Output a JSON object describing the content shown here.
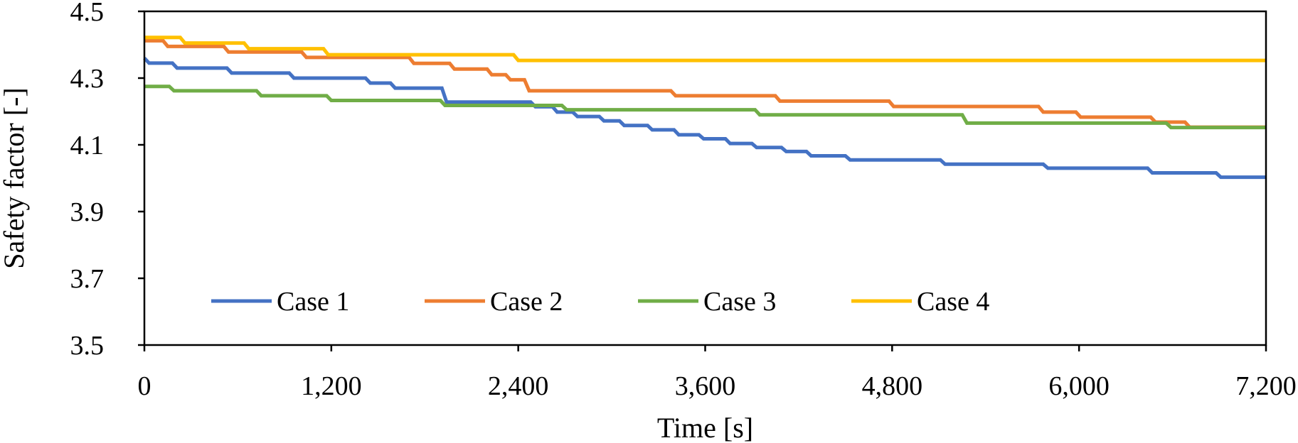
{
  "chart_data": {
    "type": "line",
    "title": "",
    "xlabel": "Time [s]",
    "ylabel": "Safety factor [-]",
    "xlim": [
      0,
      7200
    ],
    "ylim": [
      3.5,
      4.5
    ],
    "x_ticks": [
      0,
      1200,
      2400,
      3600,
      4800,
      6000,
      7200
    ],
    "x_tick_labels": [
      "0",
      "1,200",
      "2,400",
      "3,600",
      "4,800",
      "6,000",
      "7,200"
    ],
    "y_ticks": [
      3.5,
      3.7,
      3.9,
      4.1,
      4.3,
      4.5
    ],
    "y_tick_labels": [
      "3.5",
      "3.7",
      "3.9",
      "4.1",
      "4.3",
      "4.5"
    ],
    "grid": false,
    "legend_position": "bottom-left",
    "series": [
      {
        "name": "Case 1",
        "color": "#4472C4",
        "points": [
          [
            0,
            4.36
          ],
          [
            30,
            4.345
          ],
          [
            180,
            4.345
          ],
          [
            210,
            4.33
          ],
          [
            530,
            4.33
          ],
          [
            560,
            4.315
          ],
          [
            930,
            4.315
          ],
          [
            960,
            4.3
          ],
          [
            1420,
            4.3
          ],
          [
            1450,
            4.285
          ],
          [
            1580,
            4.285
          ],
          [
            1610,
            4.27
          ],
          [
            1910,
            4.27
          ],
          [
            1940,
            4.228
          ],
          [
            2480,
            4.228
          ],
          [
            2510,
            4.214
          ],
          [
            2620,
            4.214
          ],
          [
            2650,
            4.198
          ],
          [
            2750,
            4.198
          ],
          [
            2780,
            4.185
          ],
          [
            2920,
            4.185
          ],
          [
            2950,
            4.172
          ],
          [
            3050,
            4.172
          ],
          [
            3080,
            4.158
          ],
          [
            3230,
            4.158
          ],
          [
            3260,
            4.145
          ],
          [
            3400,
            4.145
          ],
          [
            3430,
            4.13
          ],
          [
            3560,
            4.13
          ],
          [
            3590,
            4.118
          ],
          [
            3730,
            4.118
          ],
          [
            3760,
            4.104
          ],
          [
            3900,
            4.104
          ],
          [
            3930,
            4.092
          ],
          [
            4090,
            4.092
          ],
          [
            4120,
            4.08
          ],
          [
            4250,
            4.08
          ],
          [
            4280,
            4.067
          ],
          [
            4500,
            4.067
          ],
          [
            4530,
            4.055
          ],
          [
            5110,
            4.055
          ],
          [
            5140,
            4.042
          ],
          [
            5770,
            4.042
          ],
          [
            5800,
            4.03
          ],
          [
            6440,
            4.03
          ],
          [
            6470,
            4.016
          ],
          [
            6880,
            4.016
          ],
          [
            6910,
            4.003
          ],
          [
            7200,
            4.003
          ]
        ]
      },
      {
        "name": "Case 2",
        "color": "#ED7D31",
        "points": [
          [
            0,
            4.412
          ],
          [
            120,
            4.412
          ],
          [
            150,
            4.395
          ],
          [
            510,
            4.395
          ],
          [
            540,
            4.378
          ],
          [
            1010,
            4.378
          ],
          [
            1040,
            4.362
          ],
          [
            1700,
            4.362
          ],
          [
            1730,
            4.344
          ],
          [
            1960,
            4.344
          ],
          [
            1990,
            4.327
          ],
          [
            2200,
            4.327
          ],
          [
            2230,
            4.31
          ],
          [
            2320,
            4.31
          ],
          [
            2350,
            4.295
          ],
          [
            2440,
            4.295
          ],
          [
            2470,
            4.262
          ],
          [
            3380,
            4.262
          ],
          [
            3410,
            4.247
          ],
          [
            4050,
            4.247
          ],
          [
            4080,
            4.231
          ],
          [
            4780,
            4.231
          ],
          [
            4810,
            4.215
          ],
          [
            5740,
            4.215
          ],
          [
            5770,
            4.198
          ],
          [
            5980,
            4.198
          ],
          [
            6010,
            4.183
          ],
          [
            6460,
            4.183
          ],
          [
            6490,
            4.168
          ],
          [
            6680,
            4.168
          ],
          [
            6710,
            4.153
          ],
          [
            7200,
            4.153
          ]
        ]
      },
      {
        "name": "Case 3",
        "color": "#70AD47",
        "points": [
          [
            0,
            4.275
          ],
          [
            160,
            4.275
          ],
          [
            190,
            4.262
          ],
          [
            720,
            4.262
          ],
          [
            750,
            4.247
          ],
          [
            1170,
            4.247
          ],
          [
            1200,
            4.233
          ],
          [
            1900,
            4.233
          ],
          [
            1930,
            4.218
          ],
          [
            2680,
            4.218
          ],
          [
            2710,
            4.205
          ],
          [
            3920,
            4.205
          ],
          [
            3950,
            4.19
          ],
          [
            5250,
            4.19
          ],
          [
            5280,
            4.165
          ],
          [
            6560,
            4.165
          ],
          [
            6590,
            4.152
          ],
          [
            7200,
            4.152
          ]
        ]
      },
      {
        "name": "Case 4",
        "color": "#FFC000",
        "points": [
          [
            0,
            4.422
          ],
          [
            230,
            4.422
          ],
          [
            260,
            4.405
          ],
          [
            640,
            4.405
          ],
          [
            670,
            4.388
          ],
          [
            1150,
            4.388
          ],
          [
            1180,
            4.37
          ],
          [
            2370,
            4.37
          ],
          [
            2400,
            4.353
          ],
          [
            7200,
            4.353
          ]
        ]
      }
    ]
  }
}
